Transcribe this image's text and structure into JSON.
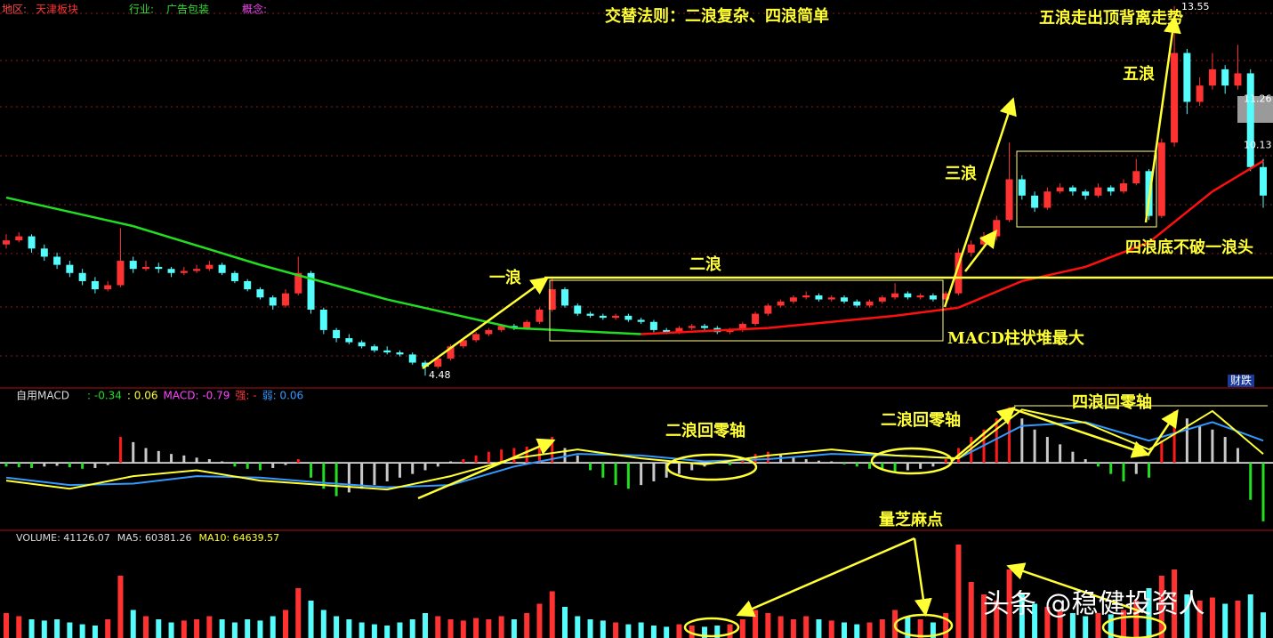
{
  "header": {
    "region_label": "地区:",
    "region": "天津板块",
    "industry_label": "行业:",
    "industry": "广告包装",
    "concept_label": "概念:"
  },
  "annotations": {
    "rule": "交替法则：二浪复杂、四浪简单",
    "wave5_note": "五浪走出顶背离走势",
    "wave5": "五浪",
    "wave3": "三浪",
    "wave1": "一浪",
    "wave2": "二浪",
    "macd_note": "MACD柱状堆最大",
    "wave4_note": "四浪底不破一浪头",
    "macd_wave2_a": "二浪回零轴",
    "macd_wave2_b": "二浪回零轴",
    "macd_wave4": "四浪回零轴",
    "volume_note": "量芝麻点",
    "badge": "财跌",
    "watermark": "头条 @稳健投资人"
  },
  "chart_data": [
    {
      "type": "candlestick",
      "up_color": "#ff3232",
      "down_color": "#54fcfc",
      "ylim": [
        4.2,
        13.7
      ],
      "price_labels": [
        4.48,
        13.55,
        11.26,
        10.13
      ],
      "candles": [
        [
          7.7,
          7.95,
          7.6,
          7.8
        ],
        [
          7.8,
          8.0,
          7.75,
          7.9
        ],
        [
          7.9,
          7.95,
          7.5,
          7.6
        ],
        [
          7.6,
          7.7,
          7.3,
          7.4
        ],
        [
          7.4,
          7.5,
          7.1,
          7.2
        ],
        [
          7.2,
          7.3,
          6.9,
          7.0
        ],
        [
          7.0,
          7.1,
          6.7,
          6.8
        ],
        [
          6.8,
          6.9,
          6.5,
          6.6
        ],
        [
          6.6,
          6.8,
          6.55,
          6.7
        ],
        [
          6.7,
          8.1,
          6.65,
          7.3
        ],
        [
          7.3,
          7.4,
          7.0,
          7.1
        ],
        [
          7.1,
          7.3,
          7.05,
          7.15
        ],
        [
          7.15,
          7.25,
          7.0,
          7.1
        ],
        [
          7.1,
          7.15,
          6.9,
          7.0
        ],
        [
          7.0,
          7.15,
          6.95,
          7.05
        ],
        [
          7.05,
          7.2,
          7.0,
          7.1
        ],
        [
          7.1,
          7.3,
          7.05,
          7.2
        ],
        [
          7.2,
          7.25,
          6.95,
          7.0
        ],
        [
          7.0,
          7.05,
          6.75,
          6.8
        ],
        [
          6.8,
          6.85,
          6.55,
          6.6
        ],
        [
          6.6,
          6.65,
          6.35,
          6.4
        ],
        [
          6.4,
          6.45,
          6.1,
          6.2
        ],
        [
          6.2,
          6.6,
          6.15,
          6.5
        ],
        [
          6.5,
          7.4,
          6.45,
          7.0
        ],
        [
          7.0,
          7.05,
          6.0,
          6.1
        ],
        [
          6.1,
          6.15,
          5.5,
          5.6
        ],
        [
          5.6,
          5.65,
          5.3,
          5.4
        ],
        [
          5.4,
          5.5,
          5.25,
          5.3
        ],
        [
          5.3,
          5.35,
          5.15,
          5.2
        ],
        [
          5.2,
          5.25,
          5.05,
          5.1
        ],
        [
          5.1,
          5.2,
          5.0,
          5.05
        ],
        [
          5.05,
          5.1,
          4.95,
          5.0
        ],
        [
          5.0,
          5.05,
          4.75,
          4.8
        ],
        [
          4.8,
          4.85,
          4.48,
          4.7
        ],
        [
          4.7,
          4.95,
          4.65,
          4.9
        ],
        [
          4.9,
          5.25,
          4.85,
          5.2
        ],
        [
          5.2,
          5.4,
          5.15,
          5.35
        ],
        [
          5.35,
          5.55,
          5.3,
          5.5
        ],
        [
          5.5,
          5.65,
          5.45,
          5.6
        ],
        [
          5.6,
          5.75,
          5.55,
          5.7
        ],
        [
          5.7,
          5.75,
          5.6,
          5.65
        ],
        [
          5.65,
          5.85,
          5.6,
          5.8
        ],
        [
          5.8,
          6.15,
          5.75,
          6.1
        ],
        [
          6.1,
          6.9,
          6.05,
          6.6
        ],
        [
          6.6,
          6.65,
          6.15,
          6.2
        ],
        [
          6.2,
          6.25,
          5.95,
          6.0
        ],
        [
          6.0,
          6.05,
          5.9,
          5.95
        ],
        [
          5.95,
          6.0,
          5.85,
          5.9
        ],
        [
          5.9,
          6.0,
          5.85,
          5.95
        ],
        [
          5.95,
          6.0,
          5.8,
          5.85
        ],
        [
          5.85,
          5.9,
          5.75,
          5.8
        ],
        [
          5.8,
          5.85,
          5.55,
          5.6
        ],
        [
          5.6,
          5.65,
          5.5,
          5.55
        ],
        [
          5.55,
          5.7,
          5.5,
          5.65
        ],
        [
          5.65,
          5.75,
          5.6,
          5.7
        ],
        [
          5.7,
          5.75,
          5.6,
          5.65
        ],
        [
          5.65,
          5.7,
          5.5,
          5.55
        ],
        [
          5.55,
          5.65,
          5.5,
          5.6
        ],
        [
          5.6,
          5.8,
          5.55,
          5.75
        ],
        [
          5.75,
          6.05,
          5.7,
          6.0
        ],
        [
          6.0,
          6.25,
          5.95,
          6.2
        ],
        [
          6.2,
          6.35,
          6.15,
          6.3
        ],
        [
          6.3,
          6.45,
          6.25,
          6.4
        ],
        [
          6.4,
          6.55,
          6.35,
          6.45
        ],
        [
          6.45,
          6.5,
          6.3,
          6.35
        ],
        [
          6.35,
          6.45,
          6.3,
          6.4
        ],
        [
          6.4,
          6.45,
          6.25,
          6.3
        ],
        [
          6.3,
          6.35,
          6.15,
          6.2
        ],
        [
          6.2,
          6.35,
          6.15,
          6.3
        ],
        [
          6.3,
          6.45,
          6.25,
          6.4
        ],
        [
          6.4,
          6.75,
          6.35,
          6.5
        ],
        [
          6.5,
          6.55,
          6.35,
          6.4
        ],
        [
          6.4,
          6.5,
          6.35,
          6.45
        ],
        [
          6.45,
          6.5,
          6.3,
          6.35
        ],
        [
          6.35,
          6.55,
          6.3,
          6.5
        ],
        [
          6.5,
          7.6,
          6.45,
          7.5
        ],
        [
          7.5,
          7.8,
          7.4,
          7.7
        ],
        [
          7.7,
          8.0,
          7.6,
          7.9
        ],
        [
          7.9,
          8.4,
          7.8,
          8.3
        ],
        [
          8.3,
          10.2,
          8.25,
          9.3
        ],
        [
          9.3,
          9.4,
          8.8,
          8.9
        ],
        [
          8.9,
          9.0,
          8.5,
          8.6
        ],
        [
          8.6,
          9.1,
          8.55,
          9.0
        ],
        [
          9.0,
          9.2,
          8.95,
          9.1
        ],
        [
          9.1,
          9.15,
          8.9,
          9.0
        ],
        [
          9.0,
          9.05,
          8.8,
          8.9
        ],
        [
          8.9,
          9.2,
          8.85,
          9.1
        ],
        [
          9.1,
          9.15,
          8.9,
          9.0
        ],
        [
          9.0,
          9.3,
          8.95,
          9.2
        ],
        [
          9.2,
          9.8,
          9.15,
          9.5
        ],
        [
          9.5,
          9.55,
          8.3,
          8.4
        ],
        [
          8.4,
          10.3,
          8.35,
          10.2
        ],
        [
          10.2,
          13.55,
          10.1,
          12.4
        ],
        [
          12.4,
          12.5,
          10.9,
          11.2
        ],
        [
          11.2,
          11.8,
          11.1,
          11.6
        ],
        [
          11.6,
          12.4,
          11.5,
          12.0
        ],
        [
          12.0,
          12.1,
          11.4,
          11.6
        ],
        [
          11.6,
          12.6,
          11.5,
          11.9
        ],
        [
          11.9,
          12.0,
          9.5,
          9.6
        ],
        [
          9.6,
          9.8,
          8.6,
          8.9
        ]
      ],
      "ma": {
        "rise_color": "#ff1010",
        "fall_color": "#22dd22",
        "x": [
          0,
          10,
          20,
          30,
          40,
          50,
          60,
          70,
          75,
          80,
          85,
          90,
          95,
          99
        ],
        "values": [
          8.85,
          8.15,
          7.2,
          6.35,
          5.65,
          5.5,
          5.65,
          5.95,
          6.15,
          6.8,
          7.15,
          7.75,
          9.0,
          9.75
        ]
      }
    },
    {
      "type": "macd",
      "title": "自用MACD",
      "readouts": [
        ": -0.34",
        ": 0.06",
        "MACD: -0.79",
        "强: -",
        "弱: 0.06"
      ],
      "readout_colors": [
        "#22dd22",
        "#ffff33",
        "#ff44ff",
        "#ff3232",
        "#3399ff"
      ],
      "ylim": [
        -0.9,
        1.0
      ],
      "up_color": "#ff1a1a",
      "down_color": "#22dd22",
      "fade_color": "#c8c8c8",
      "values": [
        -0.05,
        -0.06,
        -0.07,
        -0.05,
        -0.04,
        -0.06,
        -0.08,
        -0.07,
        -0.03,
        0.35,
        0.28,
        0.2,
        0.16,
        0.12,
        0.1,
        0.07,
        0.05,
        0.02,
        -0.05,
        -0.08,
        -0.1,
        -0.07,
        -0.03,
        0.05,
        -0.2,
        -0.35,
        -0.45,
        -0.4,
        -0.35,
        -0.3,
        -0.25,
        -0.2,
        -0.15,
        -0.1,
        -0.05,
        0.02,
        0.05,
        0.1,
        0.15,
        0.18,
        0.2,
        0.22,
        0.28,
        0.35,
        0.2,
        0.1,
        -0.1,
        -0.2,
        -0.3,
        -0.35,
        -0.3,
        -0.25,
        -0.2,
        -0.15,
        -0.1,
        -0.05,
        0.02,
        -0.03,
        0.05,
        0.12,
        0.15,
        0.12,
        0.08,
        0.05,
        0.03,
        0.02,
        -0.02,
        -0.05,
        -0.08,
        -0.1,
        -0.12,
        -0.1,
        -0.08,
        -0.05,
        0.05,
        0.2,
        0.35,
        0.45,
        0.6,
        0.75,
        0.6,
        0.45,
        0.35,
        0.25,
        0.15,
        0.05,
        -0.05,
        -0.15,
        -0.25,
        -0.15,
        -0.2,
        0.3,
        0.7,
        0.6,
        0.5,
        0.45,
        0.35,
        0.2,
        -0.5,
        -0.79
      ],
      "lines": [
        {
          "color": "#3399ff",
          "x": [
            0,
            5,
            10,
            15,
            20,
            25,
            30,
            35,
            40,
            45,
            50,
            55,
            60,
            65,
            70,
            75,
            80,
            85,
            90,
            95,
            99
          ],
          "values": [
            -0.2,
            -0.3,
            -0.28,
            -0.18,
            -0.2,
            -0.27,
            -0.33,
            -0.3,
            -0.05,
            0.12,
            0.1,
            0.02,
            0.05,
            0.12,
            0.1,
            0.06,
            0.5,
            0.55,
            0.3,
            0.55,
            0.3
          ]
        },
        {
          "color": "#ffff33",
          "x": [
            0,
            5,
            10,
            15,
            20,
            25,
            30,
            35,
            40,
            45,
            50,
            55,
            60,
            65,
            70,
            75,
            80,
            85,
            90,
            95,
            99
          ],
          "values": [
            -0.24,
            -0.35,
            -0.18,
            -0.1,
            -0.24,
            -0.3,
            -0.36,
            -0.18,
            0.06,
            0.18,
            0.06,
            -0.02,
            0.1,
            0.18,
            0.1,
            0.06,
            0.72,
            0.54,
            0.18,
            0.7,
            0.12
          ]
        }
      ]
    },
    {
      "type": "volume",
      "readouts": [
        "VOLUME: 41126.07",
        "MA5: 60381.26",
        "MA10: 64639.57"
      ],
      "readout_colors": [
        "#dddddd",
        "#dddddd",
        "#ffff33"
      ],
      "ylim": [
        0,
        150000
      ],
      "values": [
        40000,
        35000,
        30000,
        28000,
        30000,
        25000,
        22000,
        20000,
        30000,
        100000,
        45000,
        35000,
        30000,
        25000,
        28000,
        30000,
        35000,
        30000,
        25000,
        30000,
        28000,
        35000,
        45000,
        80000,
        60000,
        45000,
        35000,
        30000,
        25000,
        22000,
        20000,
        25000,
        30000,
        40000,
        35000,
        30000,
        28000,
        32000,
        30000,
        35000,
        30000,
        40000,
        55000,
        75000,
        50000,
        35000,
        30000,
        28000,
        25000,
        22000,
        25000,
        20000,
        18000,
        22000,
        20000,
        18000,
        20000,
        22000,
        30000,
        45000,
        40000,
        35000,
        30000,
        35000,
        30000,
        28000,
        25000,
        22000,
        25000,
        30000,
        45000,
        35000,
        30000,
        25000,
        40000,
        150000,
        90000,
        70000,
        60000,
        110000,
        70000,
        55000,
        50000,
        45000,
        40000,
        35000,
        40000,
        38000,
        45000,
        60000,
        80000,
        100000,
        110000,
        70000,
        60000,
        65000,
        55000,
        60000,
        70000,
        41126
      ]
    }
  ]
}
